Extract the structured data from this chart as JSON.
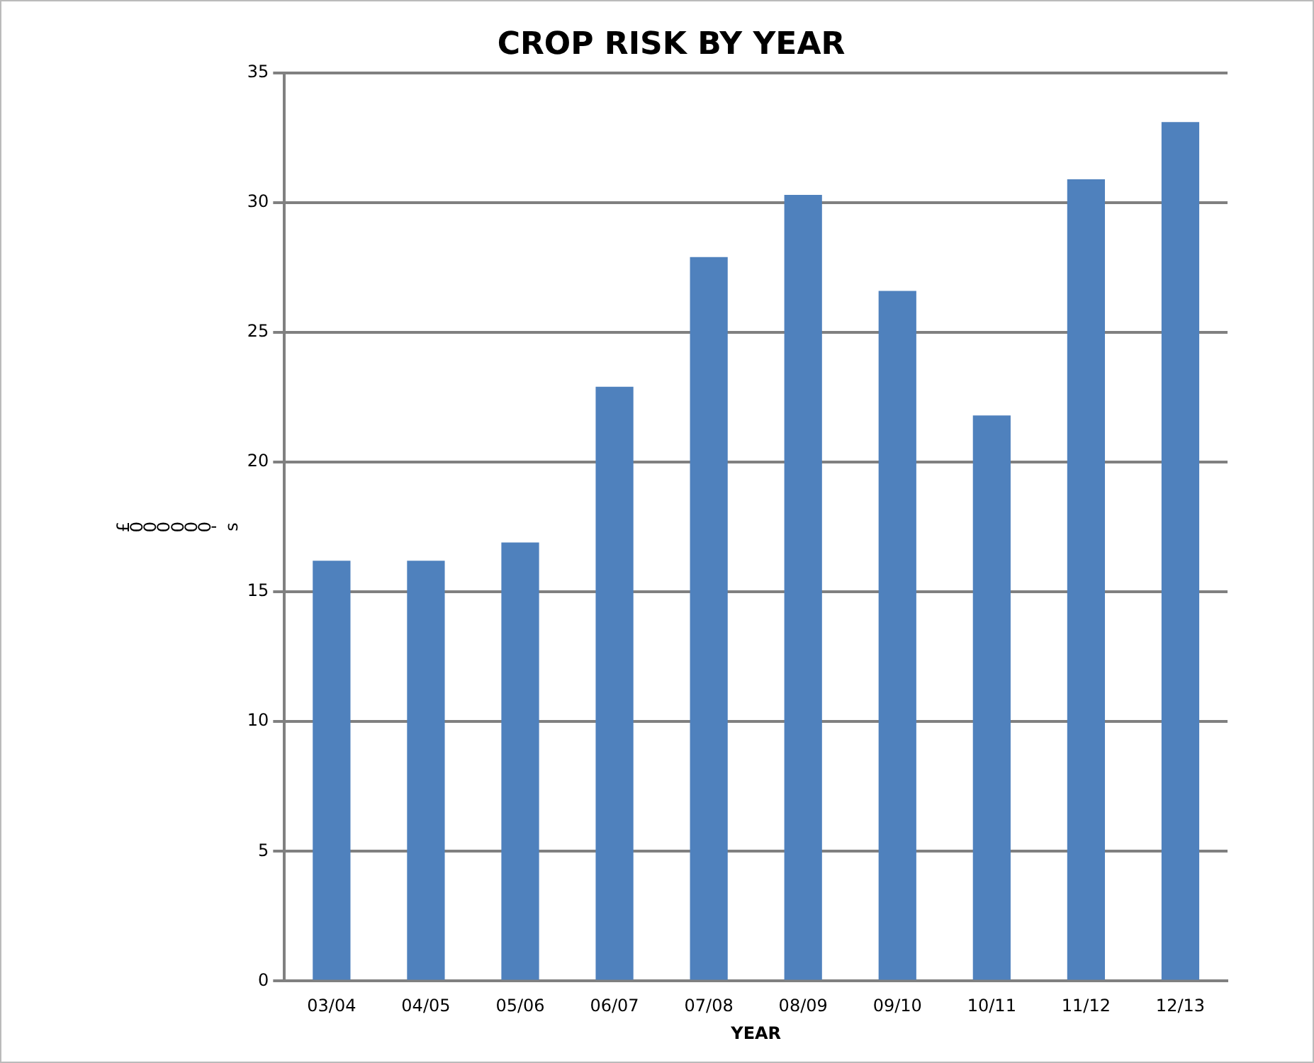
{
  "chart_data": {
    "type": "bar",
    "title": "CROP RISK BY YEAR",
    "xlabel": "YEAR",
    "ylabel": "£000000's",
    "categories": [
      "03/04",
      "04/05",
      "05/06",
      "06/07",
      "07/08",
      "08/09",
      "09/10",
      "10/11",
      "11/12",
      "12/13"
    ],
    "values": [
      16.2,
      16.2,
      16.9,
      22.9,
      27.9,
      30.3,
      26.6,
      21.8,
      30.9,
      33.1
    ],
    "color": "#4f81bd",
    "ylim": [
      0,
      35
    ],
    "yticks": [
      0,
      5,
      10,
      15,
      20,
      25,
      30,
      35
    ],
    "grid": "y",
    "legend": false
  }
}
